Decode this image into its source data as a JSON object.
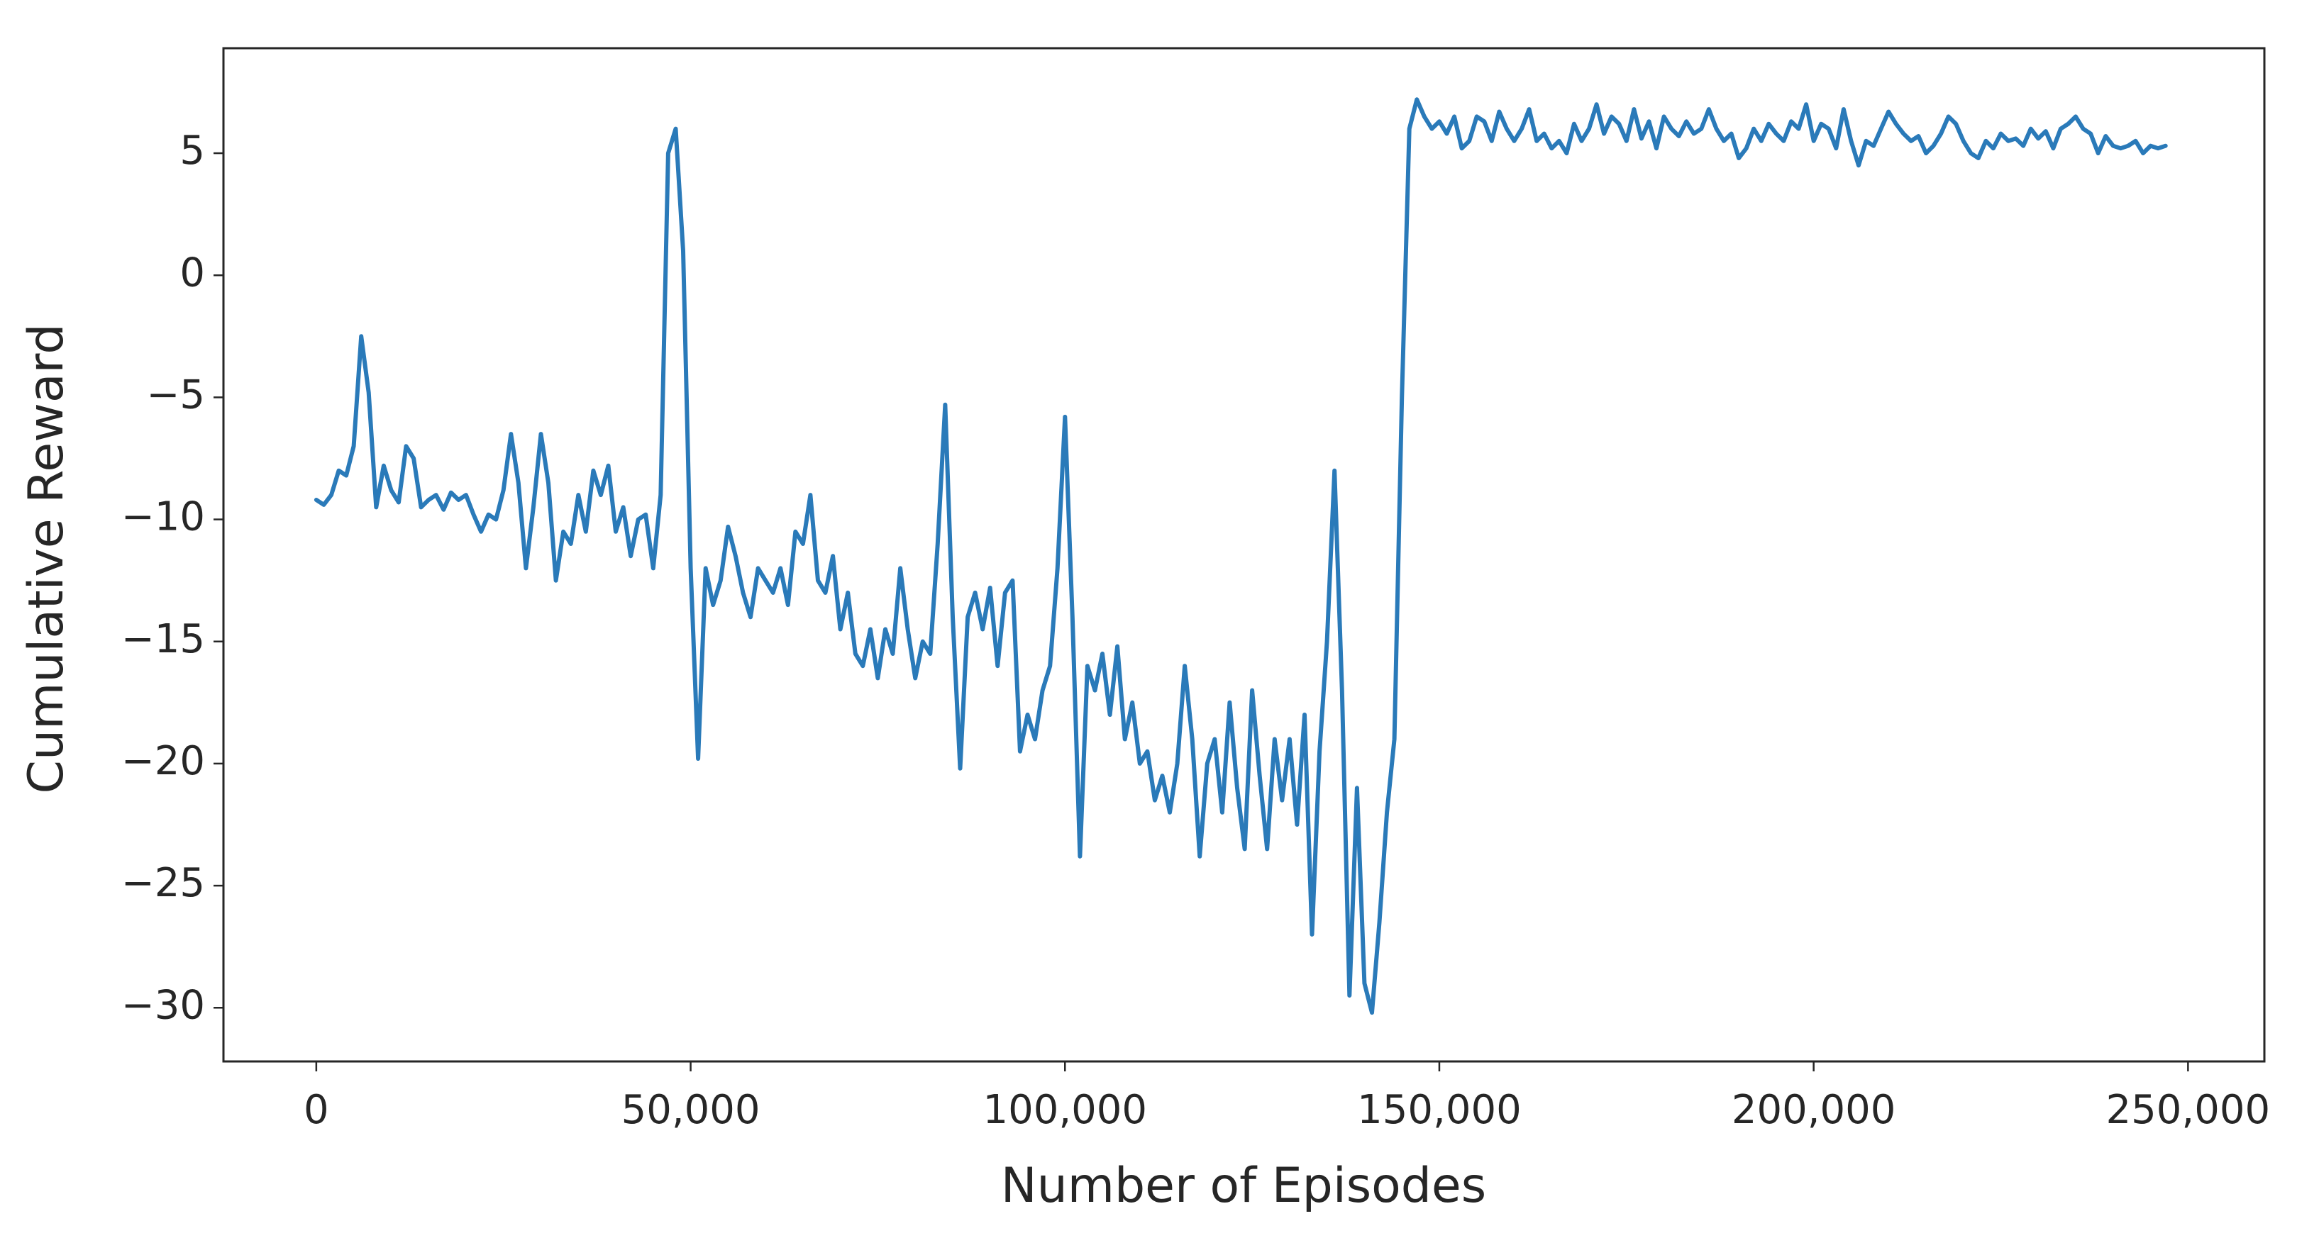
{
  "chart_data": {
    "type": "line",
    "x_label": "Number of Episodes",
    "y_label": "Cumulative Reward",
    "xlim": [
      -12400,
      260200
    ],
    "ylim": [
      -32.2,
      9.3
    ],
    "xticks": [
      0,
      {
        "value": 50000,
        "label": "50,000"
      },
      {
        "value": 100000,
        "label": "100,000"
      },
      {
        "value": 150000,
        "label": "150,000"
      },
      {
        "value": 200000,
        "label": "200,000"
      },
      {
        "value": 250000,
        "label": "250,000"
      }
    ],
    "yticks": [
      {
        "value": -30,
        "label": "−30"
      },
      {
        "value": -25,
        "label": "−25"
      },
      {
        "value": -20,
        "label": "−20"
      },
      {
        "value": -15,
        "label": "−15"
      },
      {
        "value": -10,
        "label": "−10"
      },
      {
        "value": -5,
        "label": "−5"
      },
      0,
      5
    ],
    "grid": false,
    "series": [
      {
        "color": "#2a7ab9",
        "x": [
          0,
          1000,
          2000,
          3000,
          4000,
          5000,
          6000,
          7000,
          8000,
          9000,
          10000,
          11000,
          12000,
          13000,
          14000,
          15000,
          16000,
          17000,
          18000,
          19000,
          20000,
          21000,
          22000,
          23000,
          24000,
          25000,
          26000,
          27000,
          28000,
          29000,
          30000,
          31000,
          32000,
          33000,
          34000,
          35000,
          36000,
          37000,
          38000,
          39000,
          40000,
          41000,
          42000,
          43000,
          44000,
          45000,
          46000,
          47000,
          48000,
          49000,
          50000,
          51000,
          52000,
          53000,
          54000,
          55000,
          56000,
          57000,
          58000,
          59000,
          60000,
          61000,
          62000,
          63000,
          64000,
          65000,
          66000,
          67000,
          68000,
          69000,
          70000,
          71000,
          72000,
          73000,
          74000,
          75000,
          76000,
          77000,
          78000,
          79000,
          80000,
          81000,
          82000,
          83000,
          84000,
          85000,
          86000,
          87000,
          88000,
          89000,
          90000,
          91000,
          92000,
          93000,
          94000,
          95000,
          96000,
          97000,
          98000,
          99000,
          100000,
          101000,
          102000,
          103000,
          104000,
          105000,
          106000,
          107000,
          108000,
          109000,
          110000,
          111000,
          112000,
          113000,
          114000,
          115000,
          116000,
          117000,
          118000,
          119000,
          120000,
          121000,
          122000,
          123000,
          124000,
          125000,
          126000,
          127000,
          128000,
          129000,
          130000,
          131000,
          132000,
          133000,
          134000,
          135000,
          136000,
          137000,
          138000,
          139000,
          140000,
          141000,
          142000,
          143000,
          144000,
          145000,
          146000,
          147000,
          148000,
          149000,
          150000,
          151000,
          152000,
          153000,
          154000,
          155000,
          156000,
          157000,
          158000,
          159000,
          160000,
          161000,
          162000,
          163000,
          164000,
          165000,
          166000,
          167000,
          168000,
          169000,
          170000,
          171000,
          172000,
          173000,
          174000,
          175000,
          176000,
          177000,
          178000,
          179000,
          180000,
          181000,
          182000,
          183000,
          184000,
          185000,
          186000,
          187000,
          188000,
          189000,
          190000,
          191000,
          192000,
          193000,
          194000,
          195000,
          196000,
          197000,
          198000,
          199000,
          200000,
          201000,
          202000,
          203000,
          204000,
          205000,
          206000,
          207000,
          208000,
          209000,
          210000,
          211000,
          212000,
          213000,
          214000,
          215000,
          216000,
          217000,
          218000,
          219000,
          220000,
          221000,
          222000,
          223000,
          224000,
          225000,
          226000,
          227000,
          228000,
          229000,
          230000,
          231000,
          232000,
          233000,
          234000,
          235000,
          236000,
          237000,
          238000,
          239000,
          240000,
          241000,
          242000,
          243000,
          244000,
          245000,
          246000,
          247000
        ],
        "values": [
          -9.2,
          -9.4,
          -9.0,
          -8.0,
          -8.2,
          -7.0,
          -2.5,
          -4.8,
          -9.5,
          -7.8,
          -8.8,
          -9.3,
          -7.0,
          -7.5,
          -9.5,
          -9.2,
          -9.0,
          -9.6,
          -8.9,
          -9.2,
          -9.0,
          -9.8,
          -10.5,
          -9.8,
          -10.0,
          -8.8,
          -6.5,
          -8.5,
          -12.0,
          -9.5,
          -6.5,
          -8.5,
          -12.5,
          -10.5,
          -11.0,
          -9.0,
          -10.5,
          -8.0,
          -9.0,
          -7.8,
          -10.5,
          -9.5,
          -11.5,
          -10.0,
          -9.8,
          -12.0,
          -9.0,
          5.0,
          6.0,
          1.0,
          -12.0,
          -19.8,
          -12.0,
          -13.5,
          -12.5,
          -10.3,
          -11.5,
          -13.0,
          -14.0,
          -12.0,
          -12.5,
          -13.0,
          -12.0,
          -13.5,
          -10.5,
          -11.0,
          -9.0,
          -12.5,
          -13.0,
          -11.5,
          -14.5,
          -13.0,
          -15.5,
          -16.0,
          -14.5,
          -16.5,
          -14.5,
          -15.5,
          -12.0,
          -14.5,
          -16.5,
          -15.0,
          -15.5,
          -11.0,
          -5.3,
          -14.0,
          -20.2,
          -14.0,
          -13.0,
          -14.5,
          -12.8,
          -16.0,
          -13.0,
          -12.5,
          -19.5,
          -18.0,
          -19.0,
          -17.0,
          -16.0,
          -12.0,
          -5.8,
          -14.0,
          -23.8,
          -16.0,
          -17.0,
          -15.5,
          -18.0,
          -15.2,
          -19.0,
          -17.5,
          -20.0,
          -19.5,
          -21.5,
          -20.5,
          -22.0,
          -20.0,
          -16.0,
          -19.0,
          -23.8,
          -20.0,
          -19.0,
          -22.0,
          -17.5,
          -21.0,
          -23.5,
          -17.0,
          -20.5,
          -23.5,
          -19.0,
          -21.5,
          -19.0,
          -22.5,
          -18.0,
          -27.0,
          -19.5,
          -15.0,
          -8.0,
          -17.0,
          -29.5,
          -21.0,
          -29.0,
          -30.2,
          -26.5,
          -22.0,
          -19.0,
          -5.0,
          6.0,
          7.2,
          6.5,
          6.0,
          6.3,
          5.8,
          6.5,
          5.2,
          5.5,
          6.5,
          6.3,
          5.5,
          6.7,
          6.0,
          5.5,
          6.0,
          6.8,
          5.5,
          5.8,
          5.2,
          5.5,
          5.0,
          6.2,
          5.5,
          6.0,
          7.0,
          5.8,
          6.5,
          6.2,
          5.5,
          6.8,
          5.6,
          6.3,
          5.2,
          6.5,
          6.0,
          5.7,
          6.3,
          5.8,
          6.0,
          6.8,
          6.0,
          5.5,
          5.8,
          4.8,
          5.2,
          6.0,
          5.5,
          6.2,
          5.8,
          5.5,
          6.3,
          6.0,
          7.0,
          5.5,
          6.2,
          6.0,
          5.2,
          6.8,
          5.5,
          4.5,
          5.5,
          5.3,
          6.0,
          6.7,
          6.2,
          5.8,
          5.5,
          5.7,
          5.0,
          5.3,
          5.8,
          6.5,
          6.2,
          5.5,
          5.0,
          4.8,
          5.5,
          5.2,
          5.8,
          5.5,
          5.6,
          5.3,
          6.0,
          5.6,
          5.9,
          5.2,
          6.0,
          6.2,
          6.5,
          6.0,
          5.8,
          5.0,
          5.7,
          5.3,
          5.2,
          5.3,
          5.5,
          5.0,
          5.3,
          5.2,
          5.3
        ]
      }
    ]
  }
}
